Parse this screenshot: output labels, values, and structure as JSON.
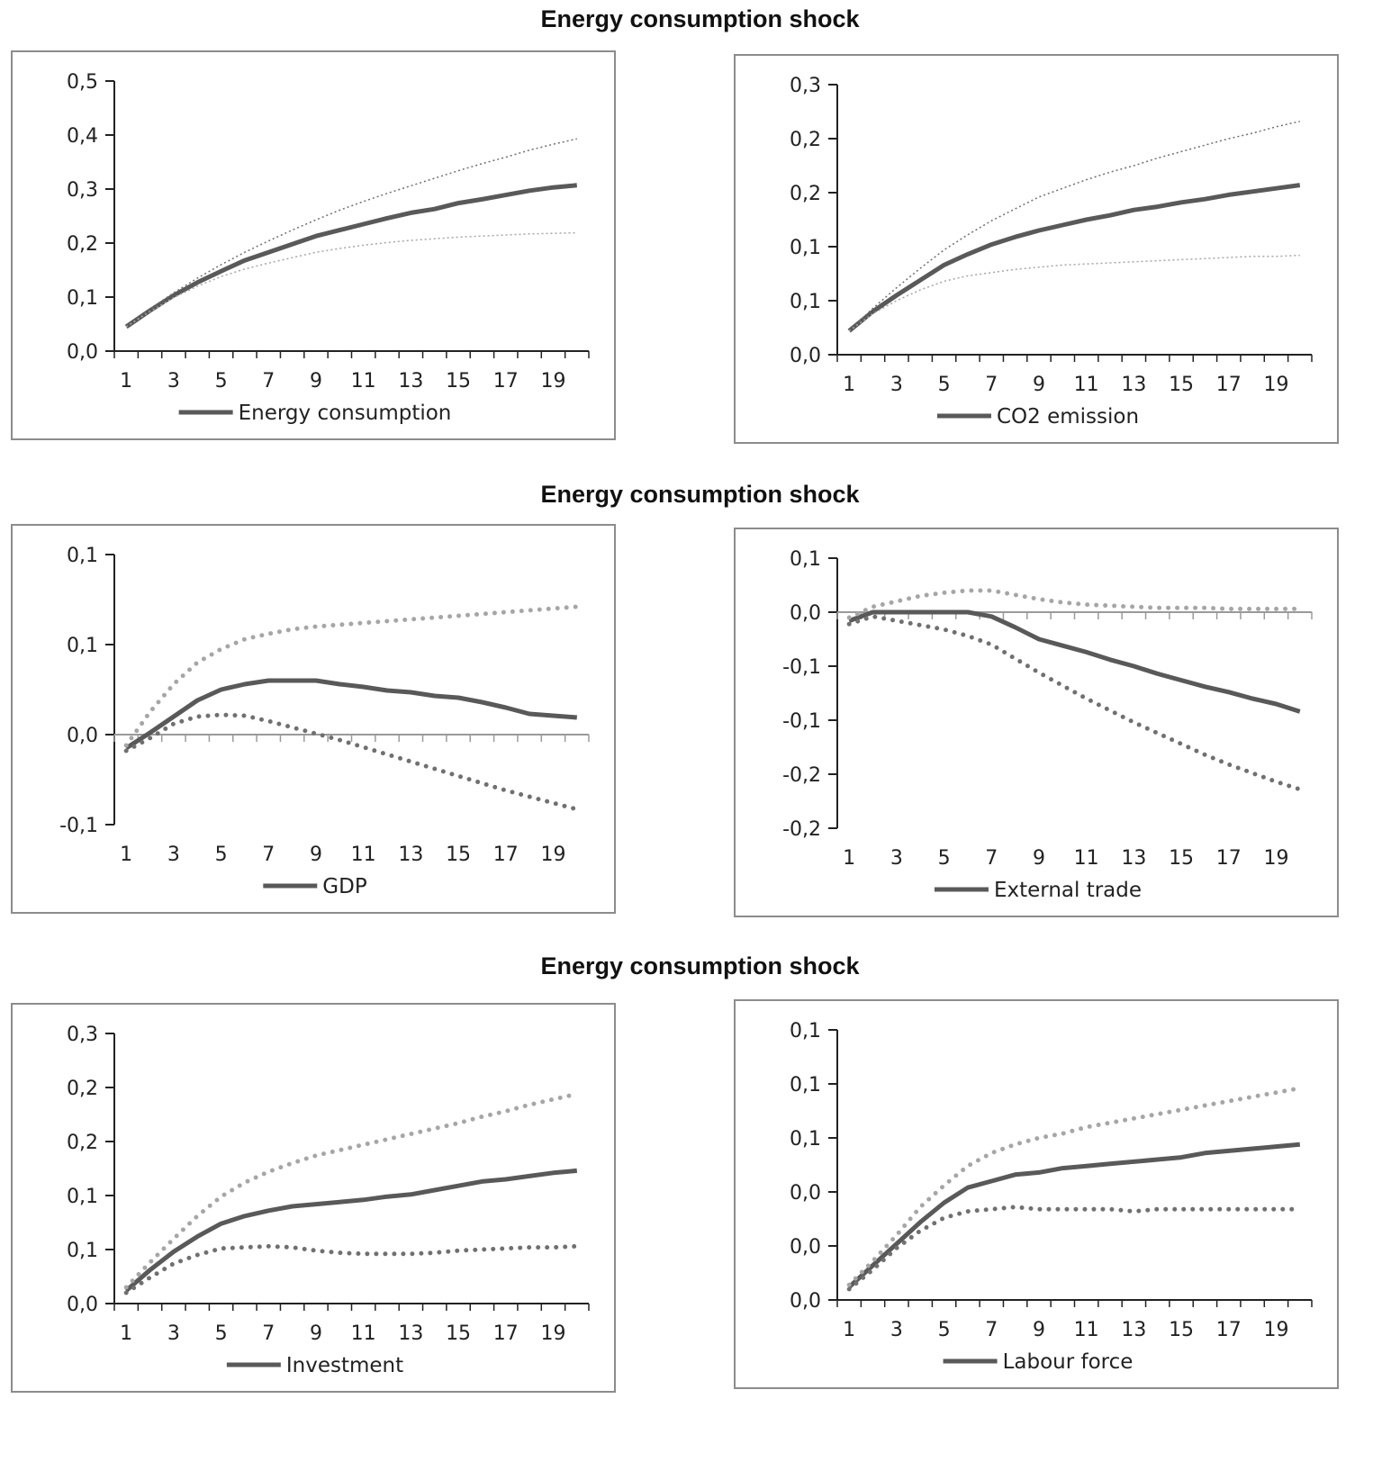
{
  "section_titles": [
    "Energy consumption shock",
    "Energy consumption shock",
    "Energy consumption shock"
  ],
  "colors": {
    "main": "#595959",
    "upper_band": "#a6a6a6",
    "lower_band": "#707070",
    "axis": "#222222",
    "frame": "#8c8c8c"
  },
  "chart_data": [
    {
      "type": "line",
      "x": [
        1,
        2,
        3,
        4,
        5,
        6,
        7,
        8,
        9,
        10,
        11,
        12,
        13,
        14,
        15,
        16,
        17,
        18,
        19,
        20
      ],
      "x_tick_labels": [
        "1",
        "3",
        "5",
        "7",
        "9",
        "11",
        "13",
        "15",
        "17",
        "19"
      ],
      "y_tick_labels": [
        "0,0",
        "0,1",
        "0,2",
        "0,3",
        "0,4",
        "0,5"
      ],
      "ylim": [
        0,
        0.5
      ],
      "band_style": "thin",
      "series": [
        {
          "role": "main",
          "name": "Energy consumption",
          "values": [
            0.045,
            0.075,
            0.103,
            0.127,
            0.148,
            0.168,
            0.183,
            0.198,
            0.213,
            0.224,
            0.235,
            0.246,
            0.256,
            0.263,
            0.274,
            0.281,
            0.289,
            0.297,
            0.303,
            0.307
          ]
        },
        {
          "role": "upper",
          "values": [
            0.045,
            0.078,
            0.108,
            0.135,
            0.16,
            0.183,
            0.204,
            0.224,
            0.243,
            0.261,
            0.277,
            0.292,
            0.306,
            0.32,
            0.334,
            0.347,
            0.359,
            0.372,
            0.383,
            0.393
          ]
        },
        {
          "role": "lower",
          "values": [
            0.045,
            0.073,
            0.099,
            0.12,
            0.138,
            0.152,
            0.163,
            0.173,
            0.183,
            0.19,
            0.196,
            0.201,
            0.205,
            0.208,
            0.211,
            0.213,
            0.215,
            0.217,
            0.218,
            0.219
          ]
        }
      ]
    },
    {
      "type": "line",
      "x": [
        1,
        2,
        3,
        4,
        5,
        6,
        7,
        8,
        9,
        10,
        11,
        12,
        13,
        14,
        15,
        16,
        17,
        18,
        19,
        20
      ],
      "x_tick_labels": [
        "1",
        "3",
        "5",
        "7",
        "9",
        "11",
        "13",
        "15",
        "17",
        "19"
      ],
      "y_tick_labels": [
        "0,0",
        "0,1",
        "0,1",
        "0,2",
        "0,2",
        "0,3"
      ],
      "ylim": [
        0,
        0.25
      ],
      "band_style": "thin",
      "series": [
        {
          "role": "main",
          "name": "CO2 emission",
          "values": [
            0.022,
            0.04,
            0.055,
            0.069,
            0.083,
            0.093,
            0.102,
            0.109,
            0.115,
            0.12,
            0.125,
            0.129,
            0.134,
            0.137,
            0.141,
            0.144,
            0.148,
            0.151,
            0.154,
            0.157
          ]
        },
        {
          "role": "upper",
          "values": [
            0.022,
            0.043,
            0.062,
            0.08,
            0.097,
            0.111,
            0.124,
            0.135,
            0.146,
            0.154,
            0.162,
            0.169,
            0.175,
            0.182,
            0.188,
            0.194,
            0.2,
            0.205,
            0.211,
            0.216
          ]
        },
        {
          "role": "lower",
          "values": [
            0.022,
            0.038,
            0.05,
            0.06,
            0.068,
            0.073,
            0.076,
            0.079,
            0.081,
            0.083,
            0.084,
            0.085,
            0.086,
            0.087,
            0.088,
            0.089,
            0.09,
            0.091,
            0.091,
            0.092
          ]
        }
      ]
    },
    {
      "type": "line",
      "x": [
        1,
        2,
        3,
        4,
        5,
        6,
        7,
        8,
        9,
        10,
        11,
        12,
        13,
        14,
        15,
        16,
        17,
        18,
        19,
        20
      ],
      "x_tick_labels": [
        "1",
        "3",
        "5",
        "7",
        "9",
        "11",
        "13",
        "15",
        "17",
        "19"
      ],
      "y_tick_labels": [
        "-0,1",
        "0,0",
        "0,1",
        "0,1"
      ],
      "ylim": [
        -0.1,
        0.2
      ],
      "band_style": "dots",
      "series": [
        {
          "role": "main",
          "name": "GDP",
          "values": [
            -0.015,
            0.002,
            0.02,
            0.038,
            0.05,
            0.056,
            0.06,
            0.06,
            0.06,
            0.056,
            0.053,
            0.049,
            0.047,
            0.043,
            0.041,
            0.036,
            0.03,
            0.023,
            0.021,
            0.019
          ]
        },
        {
          "role": "upper",
          "values": [
            -0.012,
            0.025,
            0.056,
            0.08,
            0.095,
            0.106,
            0.112,
            0.117,
            0.12,
            0.122,
            0.124,
            0.126,
            0.128,
            0.13,
            0.132,
            0.134,
            0.136,
            0.138,
            0.14,
            0.142
          ]
        },
        {
          "role": "lower",
          "values": [
            -0.018,
            -0.004,
            0.012,
            0.02,
            0.022,
            0.021,
            0.015,
            0.008,
            0.001,
            -0.006,
            -0.014,
            -0.022,
            -0.03,
            -0.038,
            -0.046,
            -0.054,
            -0.062,
            -0.069,
            -0.076,
            -0.083
          ]
        }
      ]
    },
    {
      "type": "line",
      "x": [
        1,
        2,
        3,
        4,
        5,
        6,
        7,
        8,
        9,
        10,
        11,
        12,
        13,
        14,
        15,
        16,
        17,
        18,
        19,
        20
      ],
      "x_tick_labels": [
        "1",
        "3",
        "5",
        "7",
        "9",
        "11",
        "13",
        "15",
        "17",
        "19"
      ],
      "y_tick_labels": [
        "-0,2",
        "-0,2",
        "-0,1",
        "-0,1",
        "0,0",
        "0,1"
      ],
      "ylim": [
        -0.2,
        0.05
      ],
      "band_style": "dots",
      "series": [
        {
          "role": "main",
          "name": "External trade",
          "values": [
            -0.008,
            0.0,
            0.0,
            0.0,
            0.0,
            0.0,
            -0.004,
            -0.014,
            -0.025,
            -0.031,
            -0.037,
            -0.044,
            -0.05,
            -0.057,
            -0.063,
            -0.069,
            -0.074,
            -0.08,
            -0.085,
            -0.092
          ]
        },
        {
          "role": "upper",
          "values": [
            -0.005,
            0.005,
            0.01,
            0.015,
            0.018,
            0.02,
            0.02,
            0.016,
            0.012,
            0.009,
            0.007,
            0.006,
            0.005,
            0.004,
            0.004,
            0.004,
            0.003,
            0.003,
            0.003,
            0.003
          ]
        },
        {
          "role": "lower",
          "values": [
            -0.011,
            -0.004,
            -0.008,
            -0.012,
            -0.016,
            -0.022,
            -0.03,
            -0.043,
            -0.056,
            -0.068,
            -0.08,
            -0.091,
            -0.102,
            -0.112,
            -0.122,
            -0.132,
            -0.141,
            -0.149,
            -0.157,
            -0.164
          ]
        }
      ]
    },
    {
      "type": "line",
      "x": [
        1,
        2,
        3,
        4,
        5,
        6,
        7,
        8,
        9,
        10,
        11,
        12,
        13,
        14,
        15,
        16,
        17,
        18,
        19,
        20
      ],
      "x_tick_labels": [
        "1",
        "3",
        "5",
        "7",
        "9",
        "11",
        "13",
        "15",
        "17",
        "19"
      ],
      "y_tick_labels": [
        "0,0",
        "0,1",
        "0,1",
        "0,2",
        "0,2",
        "0,3"
      ],
      "ylim": [
        0,
        0.25
      ],
      "band_style": "dots",
      "series": [
        {
          "role": "main",
          "name": "Investment",
          "values": [
            0.012,
            0.031,
            0.048,
            0.062,
            0.074,
            0.081,
            0.086,
            0.09,
            0.092,
            0.094,
            0.096,
            0.099,
            0.101,
            0.105,
            0.109,
            0.113,
            0.115,
            0.118,
            0.121,
            0.123
          ]
        },
        {
          "role": "upper",
          "values": [
            0.015,
            0.038,
            0.06,
            0.081,
            0.099,
            0.112,
            0.122,
            0.13,
            0.137,
            0.142,
            0.147,
            0.152,
            0.157,
            0.162,
            0.167,
            0.173,
            0.178,
            0.184,
            0.189,
            0.194
          ]
        },
        {
          "role": "lower",
          "values": [
            0.01,
            0.024,
            0.037,
            0.045,
            0.051,
            0.052,
            0.053,
            0.052,
            0.049,
            0.047,
            0.046,
            0.046,
            0.046,
            0.047,
            0.049,
            0.05,
            0.051,
            0.052,
            0.052,
            0.053
          ]
        }
      ]
    },
    {
      "type": "line",
      "x": [
        1,
        2,
        3,
        4,
        5,
        6,
        7,
        8,
        9,
        10,
        11,
        12,
        13,
        14,
        15,
        16,
        17,
        18,
        19,
        20
      ],
      "x_tick_labels": [
        "1",
        "3",
        "5",
        "7",
        "9",
        "11",
        "13",
        "15",
        "17",
        "19"
      ],
      "y_tick_labels": [
        "0,0",
        "0,0",
        "0,0",
        "0,1",
        "0,1",
        "0,1"
      ],
      "ylim": [
        0,
        0.125
      ],
      "band_style": "dots",
      "series": [
        {
          "role": "main",
          "name": "Labour force",
          "values": [
            0.006,
            0.016,
            0.026,
            0.036,
            0.045,
            0.052,
            0.055,
            0.058,
            0.059,
            0.061,
            0.062,
            0.063,
            0.064,
            0.065,
            0.066,
            0.068,
            0.069,
            0.07,
            0.071,
            0.072
          ]
        },
        {
          "role": "upper",
          "values": [
            0.007,
            0.018,
            0.03,
            0.043,
            0.053,
            0.062,
            0.068,
            0.072,
            0.075,
            0.077,
            0.08,
            0.082,
            0.084,
            0.086,
            0.088,
            0.09,
            0.092,
            0.094,
            0.096,
            0.098
          ]
        },
        {
          "role": "lower",
          "values": [
            0.005,
            0.014,
            0.024,
            0.032,
            0.038,
            0.041,
            0.042,
            0.043,
            0.042,
            0.042,
            0.042,
            0.042,
            0.041,
            0.042,
            0.042,
            0.042,
            0.042,
            0.042,
            0.042,
            0.042
          ]
        }
      ]
    }
  ]
}
